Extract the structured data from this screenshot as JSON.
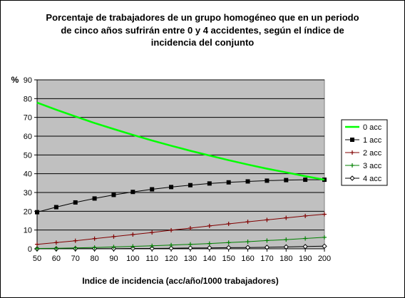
{
  "chart_data": {
    "type": "line",
    "title": [
      "Porcentaje de trabajadores de un grupo homogéneo que en un periodo",
      "de cinco años sufrirán entre 0 y 4 accidentes, según el índice de",
      "incidencia del conjunto"
    ],
    "xlabel": "Indice de incidencia (acc/año/1000 trabajadores)",
    "ylabel": "%",
    "x": [
      50,
      60,
      70,
      80,
      90,
      100,
      110,
      120,
      130,
      140,
      150,
      160,
      170,
      180,
      190,
      200
    ],
    "xticks": [
      "50",
      "60",
      "70",
      "80",
      "90",
      "100",
      "110",
      "120",
      "130",
      "140",
      "150",
      "160",
      "170",
      "180",
      "190",
      "200"
    ],
    "ylim": [
      0,
      90
    ],
    "yticks": [
      "0",
      "10",
      "20",
      "30",
      "40",
      "50",
      "60",
      "70",
      "80",
      "90"
    ],
    "grid": "horizontal",
    "plot_background": "#C0C0C0",
    "legend_position": "right",
    "series": [
      {
        "name": "0 acc",
        "color": "#00FF00",
        "marker": "none",
        "values": [
          77.9,
          74.1,
          70.5,
          67.0,
          63.8,
          60.7,
          57.7,
          54.9,
          52.2,
          49.7,
          47.2,
          44.9,
          42.7,
          40.7,
          38.7,
          36.8
        ]
      },
      {
        "name": "1 acc",
        "color": "#000000",
        "marker": "square",
        "values": [
          19.5,
          22.2,
          24.7,
          26.8,
          28.7,
          30.3,
          31.7,
          32.9,
          33.9,
          34.8,
          35.4,
          35.9,
          36.3,
          36.6,
          36.8,
          36.8
        ]
      },
      {
        "name": "2 acc",
        "color": "#800000",
        "marker": "cross",
        "values": [
          2.4,
          3.3,
          4.3,
          5.4,
          6.5,
          7.6,
          8.7,
          9.9,
          11.0,
          12.2,
          13.3,
          14.4,
          15.4,
          16.5,
          17.5,
          18.4
        ]
      },
      {
        "name": "3 acc",
        "color": "#008000",
        "marker": "cross",
        "values": [
          0.2,
          0.3,
          0.5,
          0.7,
          1.0,
          1.3,
          1.6,
          2.0,
          2.4,
          2.8,
          3.3,
          3.8,
          4.4,
          4.9,
          5.5,
          6.1
        ]
      },
      {
        "name": "4 acc",
        "color": "#000000",
        "marker": "diamond",
        "values": [
          0.0,
          0.0,
          0.1,
          0.1,
          0.1,
          0.2,
          0.2,
          0.3,
          0.4,
          0.5,
          0.6,
          0.7,
          0.8,
          1.0,
          1.2,
          1.4
        ]
      }
    ]
  }
}
